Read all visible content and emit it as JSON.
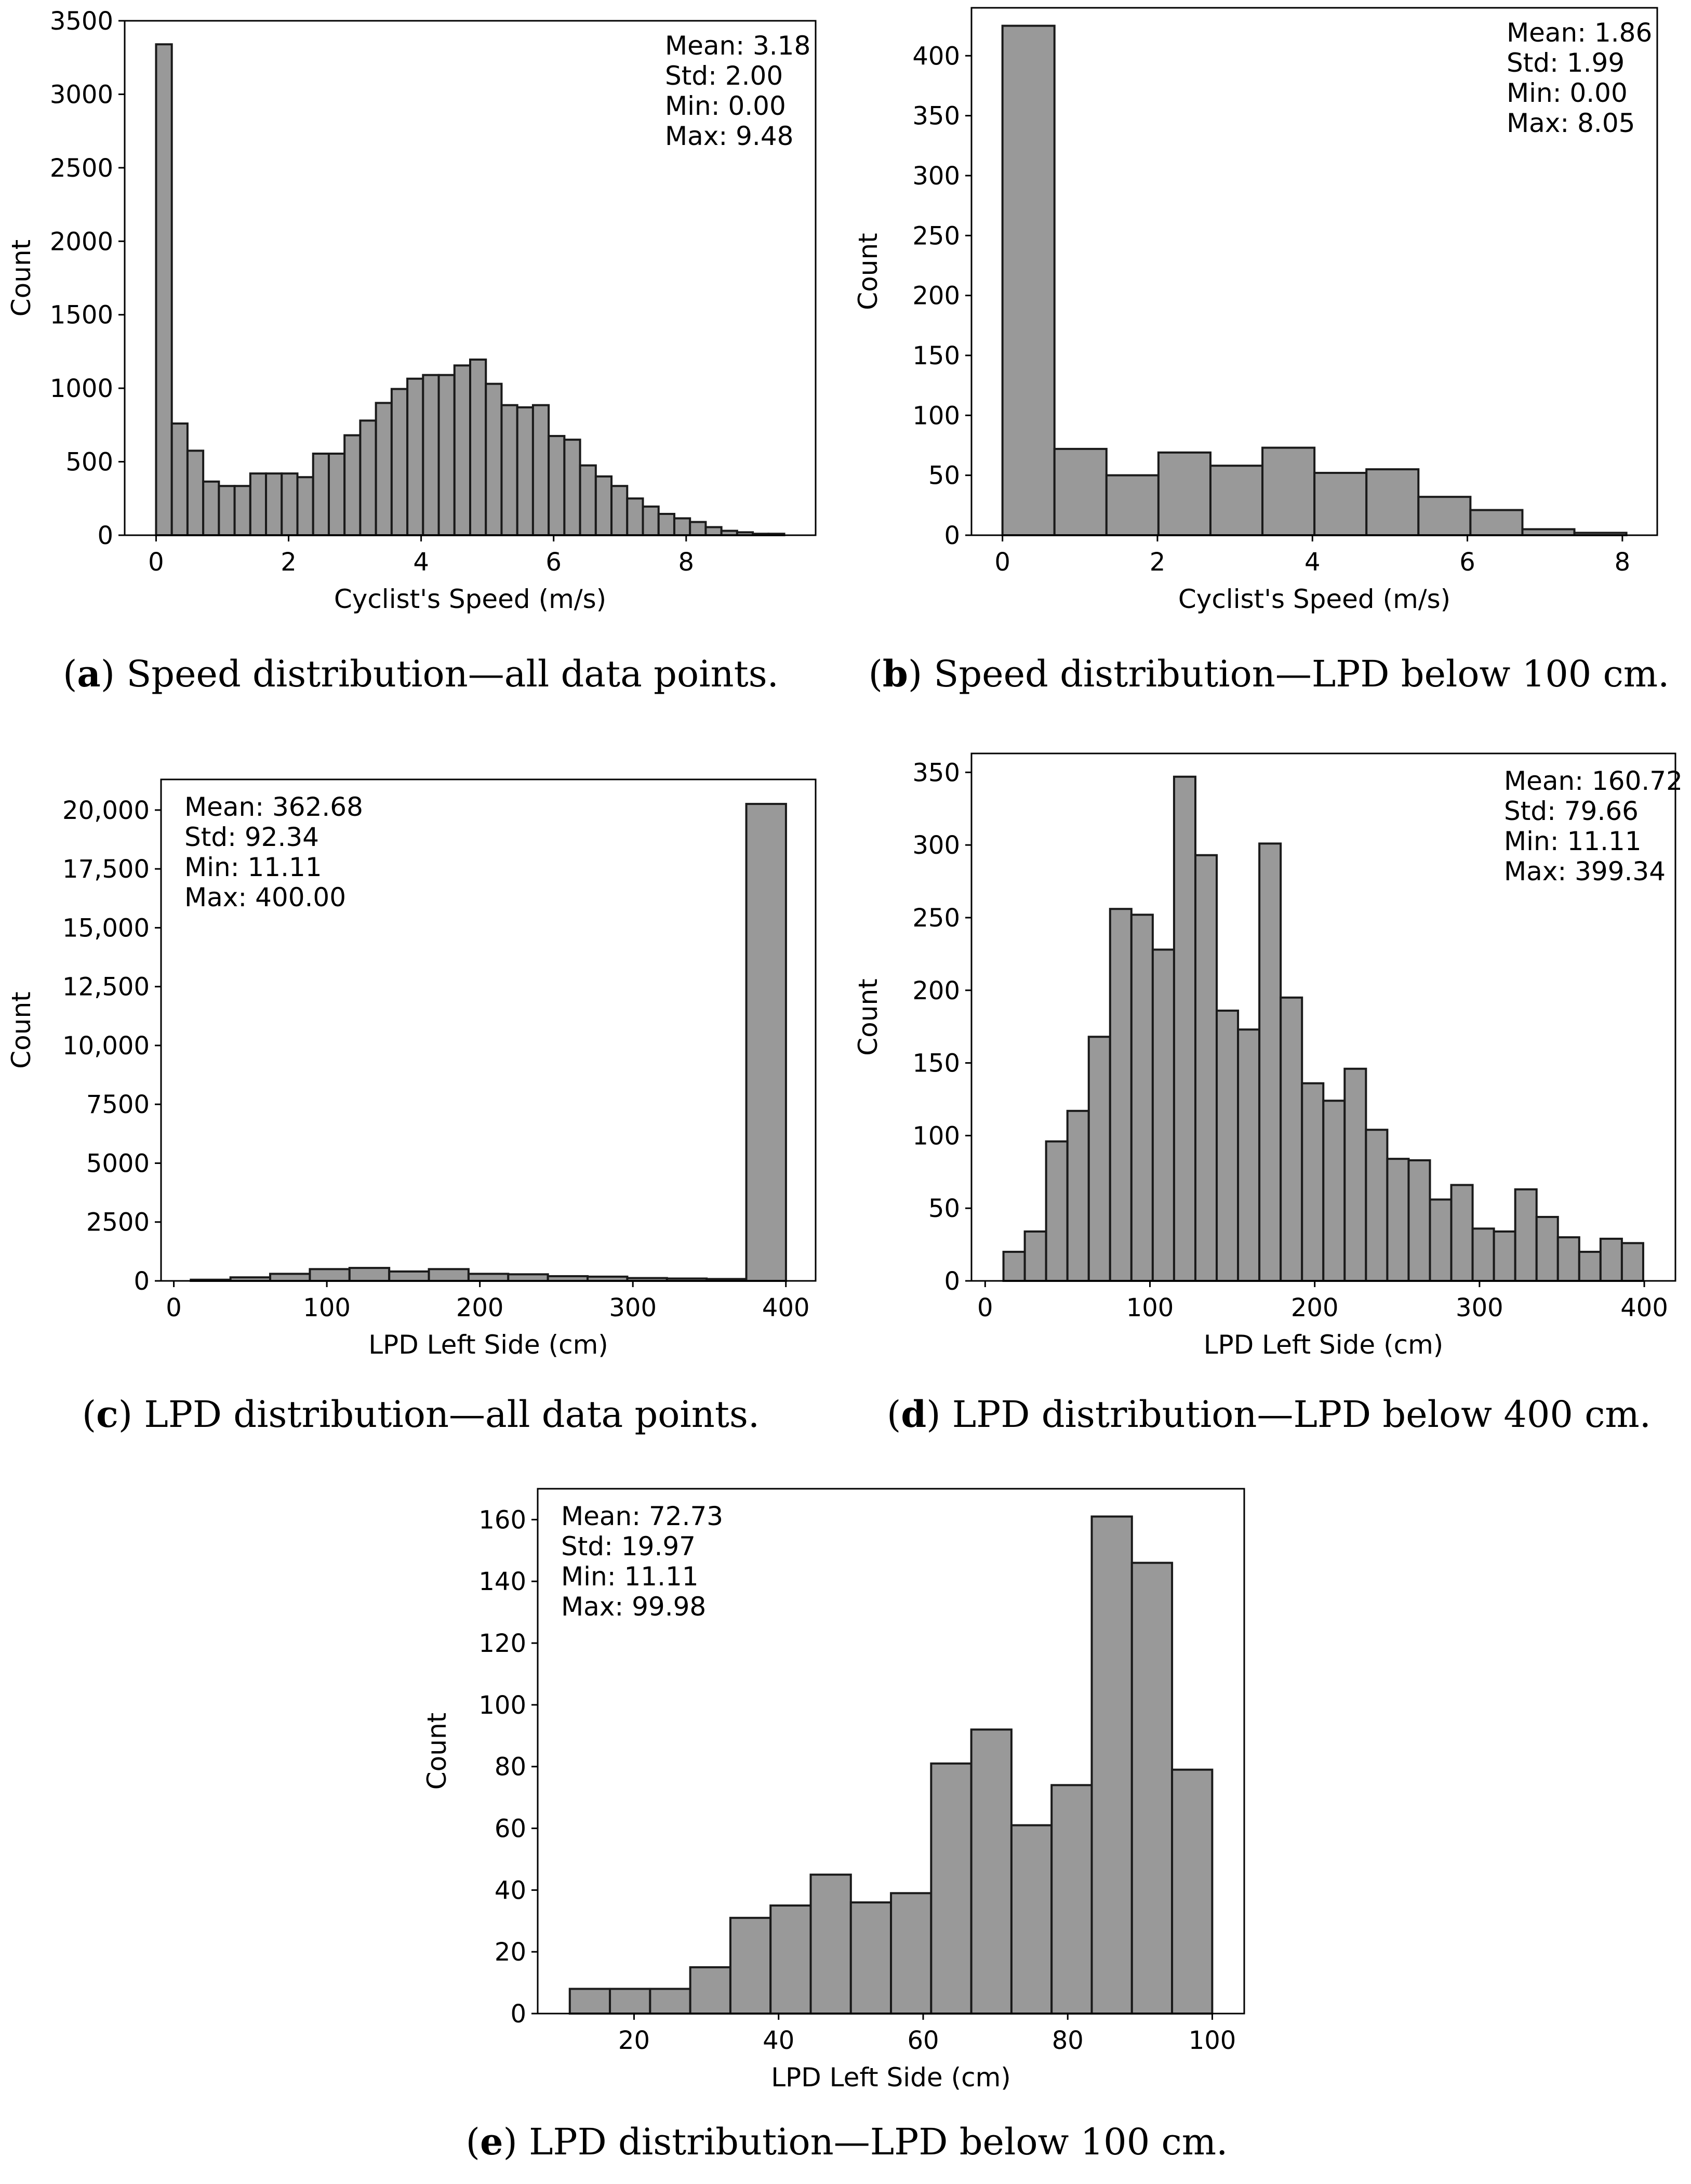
{
  "colors": {
    "bar_fill": "#999999",
    "bar_edge": "#1a1a1a",
    "axis": "#000000"
  },
  "chart_data": [
    {
      "id": "a",
      "type": "bar",
      "title": "",
      "xlabel": "Cyclist's Speed (m/s)",
      "ylabel": "Count",
      "xlim": [
        -0.474,
        9.954
      ],
      "ylim": [
        0,
        3500
      ],
      "xticks": [
        0,
        2,
        4,
        6,
        8
      ],
      "xtick_labels": [
        "0",
        "2",
        "4",
        "6",
        "8"
      ],
      "yticks": [
        0,
        500,
        1000,
        1500,
        2000,
        2500,
        3000,
        3500
      ],
      "ytick_labels": [
        "0",
        "500",
        "1000",
        "1500",
        "2000",
        "2500",
        "3000",
        "3500"
      ],
      "stats": [
        "Mean: 3.18",
        "Std: 2.00",
        "Min: 0.00",
        "Max: 9.48"
      ],
      "stats_align": "right",
      "caption_letter": "a",
      "caption_text": " Speed distribution—all data points.",
      "bin_start": 0.0,
      "bin_width": 0.237,
      "values": [
        3340,
        760,
        575,
        365,
        335,
        335,
        420,
        420,
        420,
        395,
        555,
        555,
        680,
        780,
        900,
        995,
        1065,
        1090,
        1090,
        1155,
        1195,
        1030,
        885,
        870,
        885,
        675,
        650,
        475,
        400,
        335,
        250,
        195,
        145,
        115,
        90,
        55,
        30,
        20,
        10,
        10
      ]
    },
    {
      "id": "b",
      "type": "bar",
      "title": "",
      "xlabel": "Cyclist's Speed (m/s)",
      "ylabel": "Count",
      "xlim": [
        -0.4,
        8.45
      ],
      "ylim": [
        0,
        440
      ],
      "xticks": [
        0,
        2,
        4,
        6,
        8
      ],
      "xtick_labels": [
        "0",
        "2",
        "4",
        "6",
        "8"
      ],
      "yticks": [
        0,
        50,
        100,
        150,
        200,
        250,
        300,
        350,
        400
      ],
      "ytick_labels": [
        "0",
        "50",
        "100",
        "150",
        "200",
        "250",
        "300",
        "350",
        "400"
      ],
      "stats": [
        "Mean: 1.86",
        "Std: 1.99",
        "Min: 0.00",
        "Max: 8.05"
      ],
      "stats_align": "right",
      "caption_letter": "b",
      "caption_text": " Speed distribution—LPD below 100 cm.",
      "bin_start": 0.0,
      "bin_width": 0.671,
      "values": [
        425,
        72,
        50,
        69,
        58,
        73,
        52,
        55,
        32,
        21,
        5,
        2
      ]
    },
    {
      "id": "c",
      "type": "bar",
      "title": "",
      "xlabel": "LPD Left Side (cm)",
      "ylabel": "Count",
      "xlim": [
        -8.34,
        419.44
      ],
      "ylim": [
        0,
        21300
      ],
      "xticks": [
        0,
        100,
        200,
        300,
        400
      ],
      "xtick_labels": [
        "0",
        "100",
        "200",
        "300",
        "400"
      ],
      "yticks": [
        0,
        2500,
        5000,
        7500,
        10000,
        12500,
        15000,
        17500,
        20000
      ],
      "ytick_labels": [
        "0",
        "2500",
        "5000",
        "7500",
        "10,000",
        "12,500",
        "15,000",
        "17,500",
        "20,000"
      ],
      "stats": [
        "Mean: 362.68",
        "Std: 92.34",
        "Min: 11.11",
        "Max: 400.00"
      ],
      "stats_align": "left",
      "caption_letter": "c",
      "caption_text": " LPD distribution—all data points.",
      "bin_start": 11.11,
      "bin_width": 25.93,
      "values": [
        50,
        150,
        300,
        500,
        550,
        400,
        500,
        300,
        280,
        200,
        180,
        120,
        100,
        80,
        20260
      ]
    },
    {
      "id": "d",
      "type": "bar",
      "title": "",
      "xlabel": "LPD Left Side (cm)",
      "ylabel": "Count",
      "xlim": [
        -8.3,
        418.9
      ],
      "ylim": [
        0,
        363
      ],
      "xticks": [
        0,
        100,
        200,
        300,
        400
      ],
      "xtick_labels": [
        "0",
        "100",
        "200",
        "300",
        "400"
      ],
      "yticks": [
        0,
        50,
        100,
        150,
        200,
        250,
        300,
        350
      ],
      "ytick_labels": [
        "0",
        "50",
        "100",
        "150",
        "200",
        "250",
        "300",
        "350"
      ],
      "stats": [
        "Mean: 160.72",
        "Std: 79.66",
        "Min: 11.11",
        "Max: 399.34"
      ],
      "stats_align": "right",
      "caption_letter": "d",
      "caption_text": " LPD distribution—LPD below 400 cm.",
      "bin_start": 11.11,
      "bin_width": 12.941,
      "values": [
        20,
        34,
        96,
        117,
        168,
        256,
        252,
        228,
        347,
        293,
        186,
        173,
        301,
        195,
        136,
        124,
        146,
        104,
        84,
        83,
        56,
        66,
        36,
        34,
        63,
        44,
        30,
        20,
        29,
        26
      ]
    },
    {
      "id": "e",
      "type": "bar",
      "title": "",
      "xlabel": "LPD Left Side (cm)",
      "ylabel": "Count",
      "xlim": [
        6.67,
        104.42
      ],
      "ylim": [
        0,
        170
      ],
      "xticks": [
        20,
        40,
        60,
        80,
        100
      ],
      "xtick_labels": [
        "20",
        "40",
        "60",
        "80",
        "100"
      ],
      "yticks": [
        0,
        20,
        40,
        60,
        80,
        100,
        120,
        140,
        160
      ],
      "ytick_labels": [
        "0",
        "20",
        "40",
        "60",
        "80",
        "100",
        "120",
        "140",
        "160"
      ],
      "stats": [
        "Mean: 72.73",
        "Std: 19.97",
        "Min: 11.11",
        "Max: 99.98"
      ],
      "stats_align": "left",
      "caption_letter": "e",
      "caption_text": " LPD distribution—LPD below 100 cm.",
      "bin_start": 11.11,
      "bin_width": 5.555,
      "values": [
        8,
        8,
        8,
        15,
        31,
        35,
        45,
        36,
        39,
        81,
        92,
        61,
        74,
        161,
        146,
        79
      ]
    }
  ]
}
